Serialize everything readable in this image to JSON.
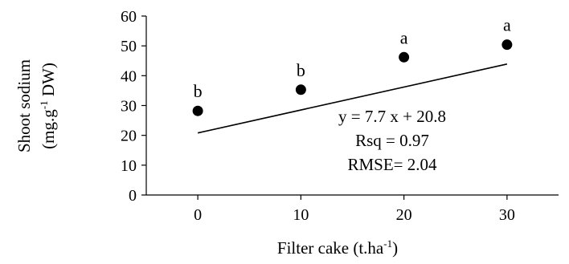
{
  "chart_data": {
    "type": "scatter",
    "x": [
      0,
      10,
      20,
      30
    ],
    "y": [
      28.2,
      35.3,
      46.2,
      50.4
    ],
    "labels": [
      "b",
      "b",
      "a",
      "a"
    ],
    "xlabel": "Filter cake (t.ha",
    "xlabel_sup": "-1",
    "xlabel_end": ")",
    "ylabel_line1": "Shoot sodium",
    "ylabel_line2_pre": "(mg.g",
    "ylabel_line2_sup": "-1",
    "ylabel_line2_end": " DW)",
    "xlim": [
      -5,
      35
    ],
    "ylim": [
      0,
      60
    ],
    "xticks": [
      0,
      10,
      20,
      30
    ],
    "yticks": [
      0,
      10,
      20,
      30,
      40,
      50,
      60
    ],
    "xtick_labels": [
      "0",
      "10",
      "20",
      "30"
    ],
    "ytick_labels": [
      "0",
      "10",
      "20",
      "30",
      "40",
      "50",
      "60"
    ],
    "trendline": {
      "slope": 7.7,
      "intercept": 20.8
    },
    "annotations": [
      "y = 7.7 x + 20.8",
      "Rsq = 0.97",
      "RMSE= 2.04"
    ],
    "grid": false,
    "marker_color": "#000000",
    "line_color": "#000000"
  }
}
